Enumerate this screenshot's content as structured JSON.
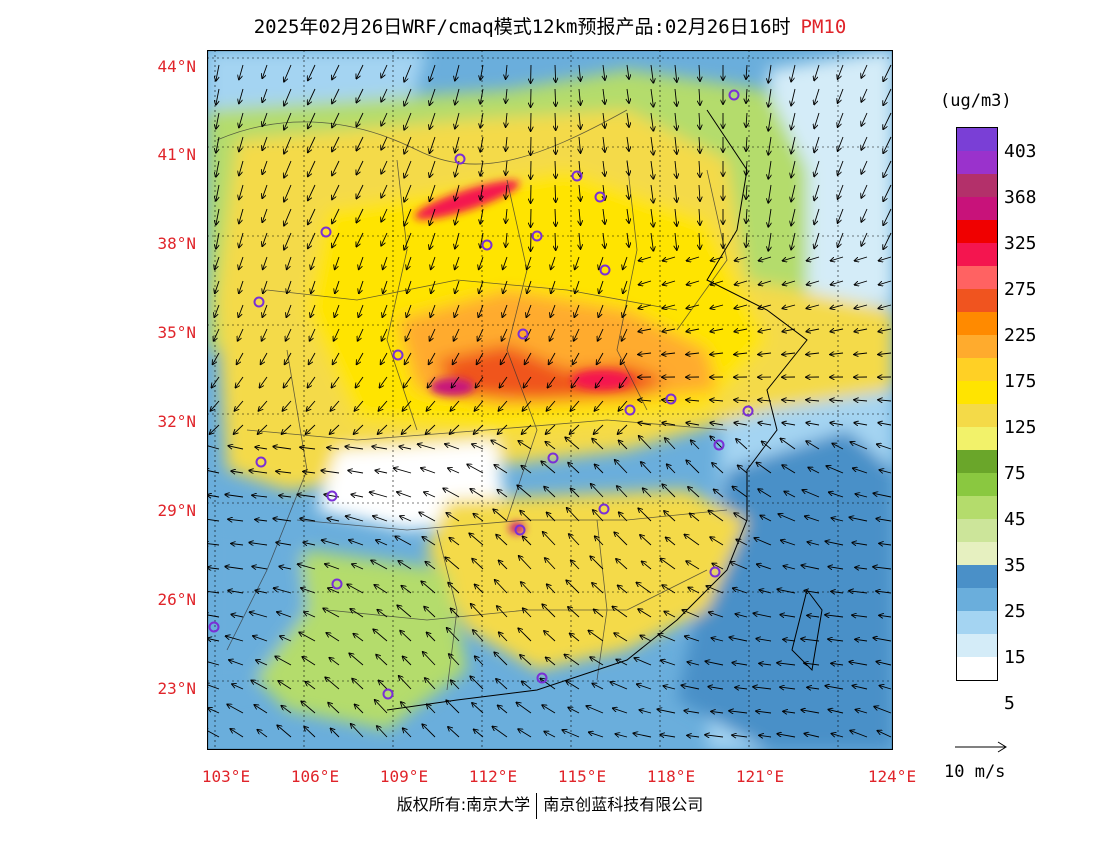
{
  "title": {
    "main": "2025年02月26日WRF/cmaq模式12km预报产品:02月26日16时",
    "product": "PM10"
  },
  "axes": {
    "lat_labels": [
      "44°N",
      "41°N",
      "38°N",
      "35°N",
      "32°N",
      "29°N",
      "26°N",
      "23°N"
    ],
    "lon_labels": [
      "103°E",
      "106°E",
      "109°E",
      "112°E",
      "115°E",
      "118°E",
      "121°E",
      "124°E"
    ]
  },
  "legend": {
    "unit": "(ug/m3)",
    "labels": [
      "403",
      "368",
      "325",
      "275",
      "225",
      "175",
      "125",
      "75",
      "45",
      "35",
      "25",
      "15",
      "5"
    ],
    "colors": [
      "#7a3fd6",
      "#9a32cc",
      "#b3306a",
      "#c8127a",
      "#f00000",
      "#f4154f",
      "#ff6262",
      "#f0541f",
      "#ff8a00",
      "#ffab2d",
      "#ffd025",
      "#ffe400",
      "#f4da48",
      "#f2f26a",
      "#6aa62a",
      "#8ac840",
      "#b4dc6c",
      "#cce59a",
      "#e6f0c0",
      "#4a90c8",
      "#6aaedc",
      "#a4d4f2",
      "#d4ecf8",
      "#ffffff"
    ],
    "vector_key": "10 m/s"
  },
  "stations_note": "",
  "copyright": {
    "left": "版权所有:南京大学",
    "right": "南京创蓝科技有限公司"
  }
}
